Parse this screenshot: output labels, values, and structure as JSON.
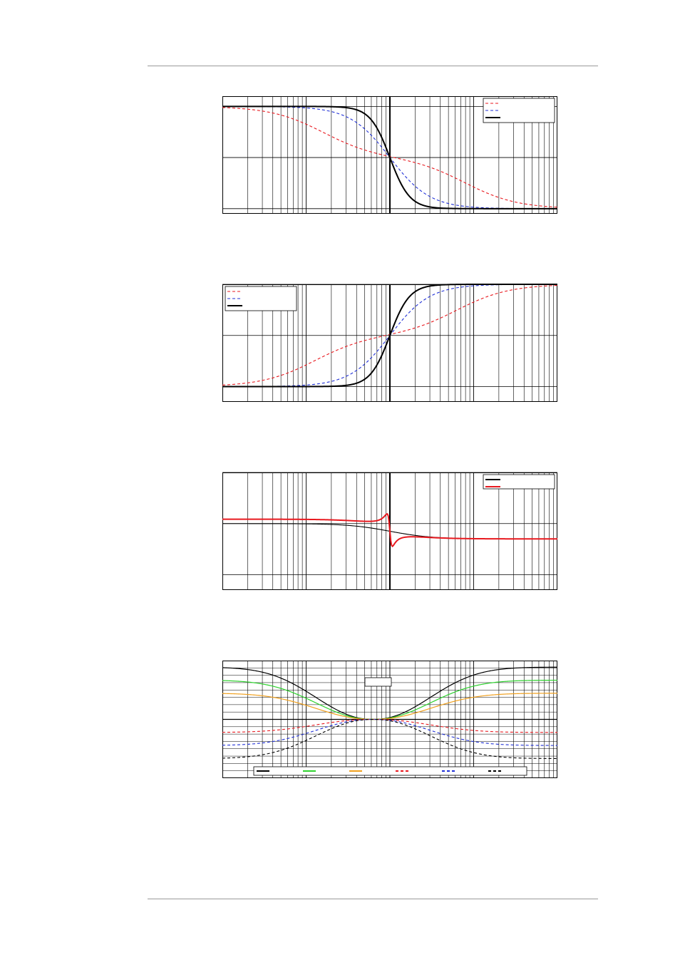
{
  "page": {
    "header_rule": true,
    "footer_rule": true
  },
  "colors": {
    "red": "#e8191f",
    "blue": "#1f2fd6",
    "black": "#000000",
    "green": "#2ed12e",
    "orange": "#f0a01e",
    "grid": "#000000"
  },
  "chart_data": [
    {
      "type": "line",
      "xscale": "log",
      "xlim": [
        0.01,
        100
      ],
      "ylim": [
        -0.05,
        1.1
      ],
      "yticks": [
        0,
        0.5,
        1
      ],
      "grid": true,
      "legend": {
        "placement": "top-right",
        "entries": [
          "",
          "",
          ""
        ]
      },
      "marker_x": 1,
      "series": [
        {
          "color": "red",
          "dash": true,
          "shape": "two-step-falling",
          "x": [
            0.01,
            0.1,
            0.3,
            1,
            3,
            10,
            100
          ],
          "y": [
            1.0,
            0.9,
            0.7,
            0.5,
            0.4,
            0.22,
            0.0
          ]
        },
        {
          "color": "blue",
          "dash": true,
          "shape": "falling",
          "x": [
            0.01,
            0.1,
            0.5,
            1,
            2,
            10,
            100
          ],
          "y": [
            1.0,
            1.0,
            0.85,
            0.5,
            0.15,
            0.0,
            0.0
          ]
        },
        {
          "color": "black",
          "dash": false,
          "shape": "steep-falling",
          "x": [
            0.01,
            0.3,
            1,
            3,
            100
          ],
          "y": [
            1.0,
            1.0,
            0.5,
            0.0,
            0.0
          ]
        }
      ]
    },
    {
      "type": "line",
      "xscale": "log",
      "xlim": [
        0.01,
        100
      ],
      "ylim": [
        -0.15,
        1.0
      ],
      "yticks": [
        0,
        0.5,
        1
      ],
      "grid": true,
      "legend": {
        "placement": "top-left",
        "entries": [
          "",
          "",
          ""
        ]
      },
      "marker_x": 1,
      "series": [
        {
          "color": "red",
          "dash": true,
          "shape": "two-step-rising",
          "x": [
            0.01,
            0.1,
            0.3,
            1,
            3,
            10,
            100
          ],
          "y": [
            0.0,
            0.1,
            0.3,
            0.5,
            0.6,
            0.8,
            1.0
          ]
        },
        {
          "color": "blue",
          "dash": true,
          "shape": "rising",
          "x": [
            0.01,
            0.1,
            0.5,
            1,
            2,
            10,
            100
          ],
          "y": [
            0.0,
            0.0,
            0.15,
            0.5,
            0.85,
            1.0,
            1.0
          ]
        },
        {
          "color": "black",
          "dash": false,
          "shape": "steep-rising",
          "x": [
            0.01,
            0.3,
            1,
            3,
            100
          ],
          "y": [
            0.0,
            0.0,
            0.5,
            1.0,
            1.0
          ]
        }
      ]
    },
    {
      "type": "line",
      "xscale": "log",
      "xlim": [
        0.01,
        100
      ],
      "ylim": [
        -0.15,
        1.0
      ],
      "yticks": [
        0,
        0.5,
        1
      ],
      "grid": true,
      "legend": {
        "placement": "top-right",
        "entries": [
          "",
          ""
        ]
      },
      "marker_x": 1,
      "series": [
        {
          "color": "black",
          "dash": false,
          "shape": "gentle-step",
          "x": [
            0.01,
            0.1,
            1,
            10,
            100
          ],
          "y": [
            0.5,
            0.5,
            0.42,
            0.35,
            0.35
          ]
        },
        {
          "color": "red",
          "dash": false,
          "shape": "resonance",
          "x": [
            0.01,
            0.1,
            0.5,
            0.9,
            1.0,
            1.15,
            1.5,
            10,
            100
          ],
          "y": [
            0.5,
            0.51,
            0.6,
            0.9,
            0.5,
            -0.1,
            0.15,
            0.35,
            0.35
          ]
        }
      ]
    },
    {
      "type": "line",
      "xscale": "log",
      "xlim": [
        0.01,
        100
      ],
      "ylim": [
        -0.9,
        0.9
      ],
      "grid": true,
      "grid_lines_y": 15,
      "legend": {
        "placement": "bottom",
        "entries": [
          "",
          "",
          "",
          "",
          "",
          ""
        ]
      },
      "label_box": "",
      "series": [
        {
          "color": "black",
          "dash": false,
          "shape": "notch",
          "level": 0.8
        },
        {
          "color": "green",
          "dash": false,
          "shape": "notch",
          "level": 0.6
        },
        {
          "color": "orange",
          "dash": false,
          "shape": "notch",
          "level": 0.4
        },
        {
          "color": "red",
          "dash": true,
          "shape": "notch",
          "level": -0.2
        },
        {
          "color": "blue",
          "dash": true,
          "shape": "notch",
          "level": -0.4
        },
        {
          "color": "black",
          "dash": true,
          "shape": "notch",
          "level": -0.6
        }
      ]
    }
  ]
}
